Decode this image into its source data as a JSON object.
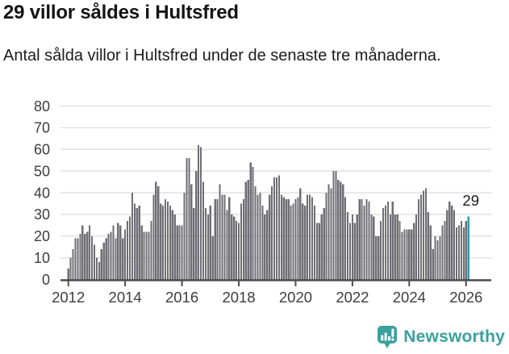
{
  "header": {
    "title": "29 villor såldes i Hultsfred",
    "subtitle": "Antal sålda villor i Hultsfred under de senaste tre månaderna."
  },
  "chart_data": {
    "type": "bar",
    "title": "29 villor såldes i Hultsfred",
    "subtitle": "Antal sålda villor i Hultsfred under de senaste tre månaderna.",
    "frequency": "monthly",
    "x_start": "2012-01",
    "x_end": "2026-02",
    "x_tick_labels": [
      "2012",
      "2014",
      "2016",
      "2018",
      "2020",
      "2022",
      "2024",
      "2026"
    ],
    "y_ticks": [
      0,
      10,
      20,
      30,
      40,
      50,
      60,
      70,
      80
    ],
    "ylim": [
      0,
      80
    ],
    "grid": true,
    "bar_color": "#6e6e74",
    "highlight_color": "#2b9c9e",
    "axis_color": "#4c4c4f",
    "grid_color": "#e1e1e1",
    "label_color": "#3d3d3d",
    "annotation": {
      "label": "29",
      "value": 29
    },
    "values": [
      5,
      10,
      14,
      19,
      19,
      21,
      25,
      21,
      22,
      25,
      20,
      16,
      10,
      8,
      14,
      17,
      19,
      21,
      22,
      25,
      19,
      26,
      25,
      19,
      23,
      27,
      29,
      40,
      35,
      33,
      34,
      25,
      22,
      22,
      22,
      27,
      39,
      45,
      43,
      35,
      34,
      37,
      36,
      34,
      32,
      30,
      25,
      25,
      25,
      40,
      56,
      56,
      44,
      33,
      50,
      62,
      61,
      45,
      33,
      30,
      34,
      20,
      37,
      37,
      44,
      39,
      39,
      32,
      38,
      30,
      29,
      27,
      26,
      35,
      37,
      45,
      46,
      54,
      52,
      43,
      39,
      40,
      34,
      30,
      32,
      39,
      43,
      47,
      47,
      48,
      39,
      38,
      37,
      37,
      34,
      35,
      37,
      38,
      42,
      35,
      34,
      39,
      39,
      38,
      34,
      26,
      26,
      30,
      33,
      40,
      44,
      42,
      50,
      50,
      46,
      45,
      44,
      38,
      31,
      26,
      30,
      26,
      30,
      37,
      37,
      34,
      37,
      36,
      30,
      29,
      20,
      20,
      27,
      33,
      34,
      36,
      30,
      36,
      30,
      30,
      27,
      22,
      23,
      23,
      23,
      23,
      26,
      30,
      37,
      39,
      41,
      42,
      31,
      25,
      14,
      20,
      18,
      20,
      25,
      27,
      32,
      36,
      34,
      32,
      24,
      25,
      27,
      24,
      27,
      29
    ]
  },
  "footer": {
    "brand": "Newsworthy",
    "brand_color": "#3aa19d",
    "logo_icon": "bar-chart-speech-bubble-icon"
  }
}
